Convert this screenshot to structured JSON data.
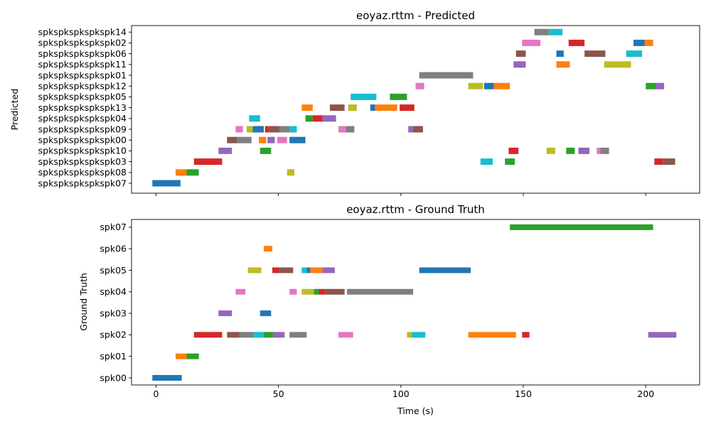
{
  "chart_data": [
    {
      "type": "timeline",
      "title": "eoyaz.rttm - Predicted",
      "ylabel": "Predicted",
      "xlabel": "",
      "xlim": [
        -10,
        222
      ],
      "xticks": [
        0,
        50,
        100,
        150,
        200
      ],
      "grid": false,
      "speakers": [
        "spkspkspkspkspk07",
        "spkspkspkspkspk08",
        "spkspkspkspkspk03",
        "spkspkspkspkspk10",
        "spkspkspkspkspk00",
        "spkspkspkspkspk09",
        "spkspkspkspkspk04",
        "spkspkspkspkspk13",
        "spkspkspkspkspk05",
        "spkspkspkspkspk12",
        "spkspkspkspkspk01",
        "spkspkspkspkspk11",
        "spkspkspkspkspk06",
        "spkspkspkspkspk02",
        "spkspkspkspkspk14"
      ],
      "segments": [
        {
          "row": 0,
          "start": -1.5,
          "end": 10,
          "color": "#1f77b4"
        },
        {
          "row": 1,
          "start": 8,
          "end": 12.5,
          "color": "#ff7f0e"
        },
        {
          "row": 1,
          "start": 12.5,
          "end": 17.5,
          "color": "#2ca02c"
        },
        {
          "row": 1,
          "start": 53.5,
          "end": 56.5,
          "color": "#bcbd22"
        },
        {
          "row": 2,
          "start": 15.5,
          "end": 27,
          "color": "#d62728"
        },
        {
          "row": 2,
          "start": 132.5,
          "end": 137.5,
          "color": "#17becf"
        },
        {
          "row": 2,
          "start": 142.5,
          "end": 146.5,
          "color": "#2ca02c"
        },
        {
          "row": 2,
          "start": 203.5,
          "end": 207,
          "color": "#d62728"
        },
        {
          "row": 2,
          "start": 207,
          "end": 212,
          "color": "#8c564b"
        },
        {
          "row": 3,
          "start": 25.5,
          "end": 31,
          "color": "#9467bd"
        },
        {
          "row": 3,
          "start": 42.5,
          "end": 47,
          "color": "#2ca02c"
        },
        {
          "row": 3,
          "start": 144,
          "end": 148,
          "color": "#d62728"
        },
        {
          "row": 3,
          "start": 159.5,
          "end": 163,
          "color": "#bcbd22"
        },
        {
          "row": 3,
          "start": 167.5,
          "end": 171,
          "color": "#2ca02c"
        },
        {
          "row": 3,
          "start": 172.5,
          "end": 177,
          "color": "#9467bd"
        },
        {
          "row": 3,
          "start": 180,
          "end": 181.5,
          "color": "#e377c2"
        },
        {
          "row": 3,
          "start": 181.5,
          "end": 185,
          "color": "#7f7f7f"
        },
        {
          "row": 4,
          "start": 29,
          "end": 33,
          "color": "#8c564b"
        },
        {
          "row": 4,
          "start": 33,
          "end": 39,
          "color": "#7f7f7f"
        },
        {
          "row": 4,
          "start": 42,
          "end": 45,
          "color": "#ff7f0e"
        },
        {
          "row": 4,
          "start": 45.5,
          "end": 48.5,
          "color": "#9467bd"
        },
        {
          "row": 4,
          "start": 49.5,
          "end": 53.5,
          "color": "#e377c2"
        },
        {
          "row": 4,
          "start": 54.5,
          "end": 61,
          "color": "#1f77b4"
        },
        {
          "row": 5,
          "start": 32.5,
          "end": 35.5,
          "color": "#e377c2"
        },
        {
          "row": 5,
          "start": 37,
          "end": 39.5,
          "color": "#bcbd22"
        },
        {
          "row": 5,
          "start": 39.5,
          "end": 44,
          "color": "#1f77b4"
        },
        {
          "row": 5,
          "start": 44.5,
          "end": 46,
          "color": "#d62728"
        },
        {
          "row": 5,
          "start": 46,
          "end": 50.5,
          "color": "#8c564b"
        },
        {
          "row": 5,
          "start": 50.5,
          "end": 54.5,
          "color": "#7f7f7f"
        },
        {
          "row": 5,
          "start": 54.5,
          "end": 57.5,
          "color": "#17becf"
        },
        {
          "row": 5,
          "start": 74.5,
          "end": 77.5,
          "color": "#e377c2"
        },
        {
          "row": 5,
          "start": 77.5,
          "end": 81,
          "color": "#7f7f7f"
        },
        {
          "row": 5,
          "start": 103,
          "end": 105,
          "color": "#9467bd"
        },
        {
          "row": 5,
          "start": 105,
          "end": 109,
          "color": "#8c564b"
        },
        {
          "row": 6,
          "start": 38,
          "end": 42.5,
          "color": "#17becf"
        },
        {
          "row": 6,
          "start": 61,
          "end": 64,
          "color": "#2ca02c"
        },
        {
          "row": 6,
          "start": 64,
          "end": 68,
          "color": "#d62728"
        },
        {
          "row": 6,
          "start": 68,
          "end": 73.5,
          "color": "#9467bd"
        },
        {
          "row": 7,
          "start": 59.5,
          "end": 64,
          "color": "#ff7f0e"
        },
        {
          "row": 7,
          "start": 71,
          "end": 77,
          "color": "#8c564b"
        },
        {
          "row": 7,
          "start": 78.5,
          "end": 82,
          "color": "#bcbd22"
        },
        {
          "row": 7,
          "start": 87.5,
          "end": 89.5,
          "color": "#1f77b4"
        },
        {
          "row": 7,
          "start": 89.5,
          "end": 98.5,
          "color": "#ff7f0e"
        },
        {
          "row": 7,
          "start": 99.5,
          "end": 105.5,
          "color": "#d62728"
        },
        {
          "row": 8,
          "start": 79.5,
          "end": 90,
          "color": "#17becf"
        },
        {
          "row": 8,
          "start": 95.5,
          "end": 102.5,
          "color": "#2ca02c"
        },
        {
          "row": 9,
          "start": 106,
          "end": 109.5,
          "color": "#e377c2"
        },
        {
          "row": 9,
          "start": 127.5,
          "end": 133.5,
          "color": "#bcbd22"
        },
        {
          "row": 9,
          "start": 134,
          "end": 138,
          "color": "#1f77b4"
        },
        {
          "row": 9,
          "start": 138,
          "end": 144.5,
          "color": "#ff7f0e"
        },
        {
          "row": 9,
          "start": 200,
          "end": 204,
          "color": "#2ca02c"
        },
        {
          "row": 9,
          "start": 204,
          "end": 207.5,
          "color": "#9467bd"
        },
        {
          "row": 10,
          "start": 107.5,
          "end": 129.5,
          "color": "#7f7f7f"
        },
        {
          "row": 11,
          "start": 146,
          "end": 151,
          "color": "#9467bd"
        },
        {
          "row": 11,
          "start": 163.5,
          "end": 169,
          "color": "#ff7f0e"
        },
        {
          "row": 11,
          "start": 183,
          "end": 194,
          "color": "#bcbd22"
        },
        {
          "row": 12,
          "start": 147,
          "end": 151,
          "color": "#8c564b"
        },
        {
          "row": 12,
          "start": 163.5,
          "end": 166.5,
          "color": "#1f77b4"
        },
        {
          "row": 12,
          "start": 175,
          "end": 183.5,
          "color": "#8c564b"
        },
        {
          "row": 12,
          "start": 192,
          "end": 198.5,
          "color": "#17becf"
        },
        {
          "row": 13,
          "start": 149.5,
          "end": 157,
          "color": "#e377c2"
        },
        {
          "row": 13,
          "start": 168.5,
          "end": 175,
          "color": "#d62728"
        },
        {
          "row": 13,
          "start": 195,
          "end": 199.5,
          "color": "#1f77b4"
        },
        {
          "row": 13,
          "start": 199.5,
          "end": 203,
          "color": "#ff7f0e"
        },
        {
          "row": 14,
          "start": 154.5,
          "end": 160.5,
          "color": "#7f7f7f"
        },
        {
          "row": 14,
          "start": 160.5,
          "end": 166,
          "color": "#17becf"
        }
      ]
    },
    {
      "type": "timeline",
      "title": "eoyaz.rttm - Ground Truth",
      "ylabel": "Ground Truth",
      "xlabel": "Time (s)",
      "xlim": [
        -10,
        222
      ],
      "xticks": [
        0,
        50,
        100,
        150,
        200
      ],
      "grid": false,
      "speakers": [
        "spk00",
        "spk01",
        "spk02",
        "spk03",
        "spk04",
        "spk05",
        "spk06",
        "spk07"
      ],
      "segments": [
        {
          "row": 0,
          "start": -1.5,
          "end": 10.5,
          "color": "#1f77b4"
        },
        {
          "row": 1,
          "start": 8,
          "end": 12.5,
          "color": "#ff7f0e"
        },
        {
          "row": 1,
          "start": 12.5,
          "end": 17.5,
          "color": "#2ca02c"
        },
        {
          "row": 2,
          "start": 15.5,
          "end": 27,
          "color": "#d62728"
        },
        {
          "row": 2,
          "start": 29,
          "end": 34,
          "color": "#8c564b"
        },
        {
          "row": 2,
          "start": 34,
          "end": 40,
          "color": "#7f7f7f"
        },
        {
          "row": 2,
          "start": 40,
          "end": 44,
          "color": "#17becf"
        },
        {
          "row": 2,
          "start": 44,
          "end": 48,
          "color": "#2ca02c"
        },
        {
          "row": 2,
          "start": 48,
          "end": 52.5,
          "color": "#9467bd"
        },
        {
          "row": 2,
          "start": 54.5,
          "end": 61.5,
          "color": "#7f7f7f"
        },
        {
          "row": 2,
          "start": 74.5,
          "end": 80.5,
          "color": "#e377c2"
        },
        {
          "row": 2,
          "start": 102.5,
          "end": 104.5,
          "color": "#bcbd22"
        },
        {
          "row": 2,
          "start": 104.5,
          "end": 110,
          "color": "#17becf"
        },
        {
          "row": 2,
          "start": 127.5,
          "end": 147,
          "color": "#ff7f0e"
        },
        {
          "row": 2,
          "start": 149.5,
          "end": 152.5,
          "color": "#d62728"
        },
        {
          "row": 2,
          "start": 201,
          "end": 212.5,
          "color": "#9467bd"
        },
        {
          "row": 3,
          "start": 25.5,
          "end": 31,
          "color": "#9467bd"
        },
        {
          "row": 3,
          "start": 42.5,
          "end": 47,
          "color": "#1f77b4"
        },
        {
          "row": 4,
          "start": 32.5,
          "end": 36.5,
          "color": "#e377c2"
        },
        {
          "row": 4,
          "start": 54.5,
          "end": 57.5,
          "color": "#e377c2"
        },
        {
          "row": 4,
          "start": 59.5,
          "end": 64.5,
          "color": "#bcbd22"
        },
        {
          "row": 4,
          "start": 64.5,
          "end": 66.5,
          "color": "#2ca02c"
        },
        {
          "row": 4,
          "start": 66.5,
          "end": 69,
          "color": "#d62728"
        },
        {
          "row": 4,
          "start": 69,
          "end": 77,
          "color": "#8c564b"
        },
        {
          "row": 4,
          "start": 78,
          "end": 105,
          "color": "#7f7f7f"
        },
        {
          "row": 5,
          "start": 37.5,
          "end": 43,
          "color": "#bcbd22"
        },
        {
          "row": 5,
          "start": 47.5,
          "end": 50.5,
          "color": "#d62728"
        },
        {
          "row": 5,
          "start": 50.5,
          "end": 56,
          "color": "#8c564b"
        },
        {
          "row": 5,
          "start": 59.5,
          "end": 61.5,
          "color": "#17becf"
        },
        {
          "row": 5,
          "start": 61.5,
          "end": 63,
          "color": "#1f77b4"
        },
        {
          "row": 5,
          "start": 63,
          "end": 68,
          "color": "#ff7f0e"
        },
        {
          "row": 5,
          "start": 68,
          "end": 73,
          "color": "#9467bd"
        },
        {
          "row": 5,
          "start": 107.5,
          "end": 128.5,
          "color": "#1f77b4"
        },
        {
          "row": 6,
          "start": 44,
          "end": 47.5,
          "color": "#ff7f0e"
        },
        {
          "row": 7,
          "start": 144.5,
          "end": 203,
          "color": "#2ca02c"
        }
      ]
    }
  ]
}
